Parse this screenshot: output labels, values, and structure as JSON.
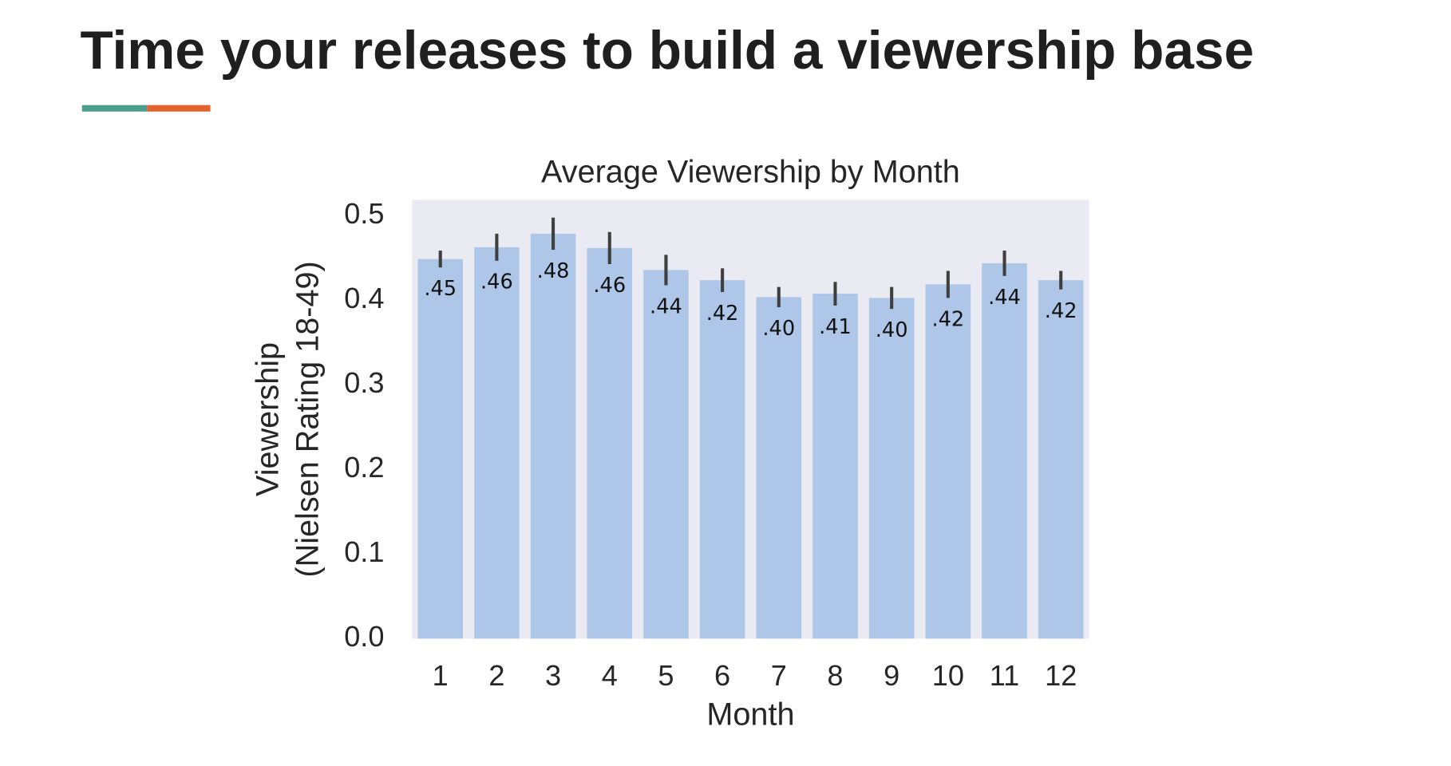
{
  "header": {
    "title": "Time your releases to build a viewership base"
  },
  "chart_data": {
    "type": "bar",
    "title": "Average Viewership by Month",
    "xlabel": "Month",
    "ylabel": [
      "Viewership",
      "(Nielsen Rating 18-49)"
    ],
    "categories": [
      "1",
      "2",
      "3",
      "4",
      "5",
      "6",
      "7",
      "8",
      "9",
      "10",
      "11",
      "12"
    ],
    "values": [
      0.449,
      0.463,
      0.479,
      0.462,
      0.436,
      0.424,
      0.404,
      0.408,
      0.403,
      0.419,
      0.444,
      0.424
    ],
    "value_labels": [
      ".45",
      ".46",
      ".48",
      ".46",
      ".44",
      ".42",
      ".40",
      ".41",
      ".40",
      ".42",
      ".44",
      ".42"
    ],
    "errors": [
      0.01,
      0.016,
      0.019,
      0.019,
      0.018,
      0.014,
      0.012,
      0.014,
      0.013,
      0.016,
      0.015,
      0.011
    ],
    "color": "#aec7e8",
    "error_color": "#3f3f3f",
    "background": "#eaeaf2",
    "ylim": [
      0,
      0.519
    ],
    "yticks": [
      {
        "value": 0,
        "label": "0.0"
      },
      0.1,
      0.2,
      0.3,
      0.4,
      0.5
    ],
    "grid": false
  }
}
